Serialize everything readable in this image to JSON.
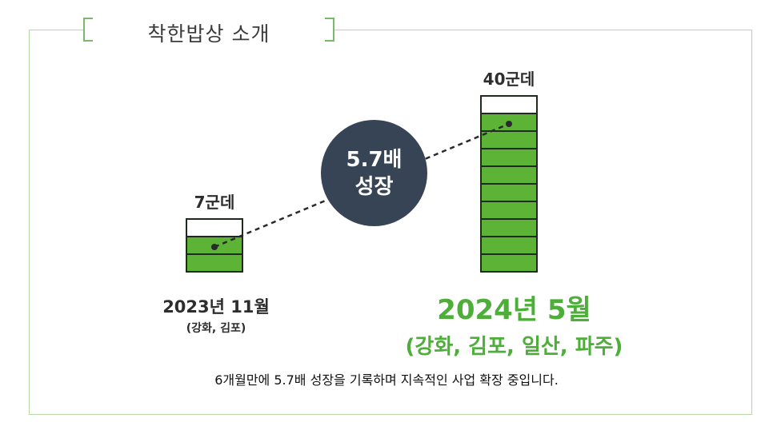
{
  "header": {
    "title": "착한밥상 소개"
  },
  "colors": {
    "bar_fill": "#5cb335",
    "bar_empty": "#ffffff",
    "bar_outline": "#1f2a1c",
    "accent": "#4eae3a",
    "circle": "#364455",
    "frame": "#b8d8a8"
  },
  "chart_data": {
    "type": "bar",
    "categories": [
      "2023년 11월",
      "2024년 5월"
    ],
    "values": [
      7,
      40
    ],
    "value_labels": [
      "7군데",
      "40군데"
    ],
    "regions": [
      "(강화, 김포)",
      "(강화, 김포, 일산, 파주)"
    ],
    "growth": {
      "line1": "5.7배",
      "line2": "성장"
    },
    "footnote": "6개월만에 5.7배 성장을 기록하며 지속적인 사업 확장 중입니다."
  }
}
